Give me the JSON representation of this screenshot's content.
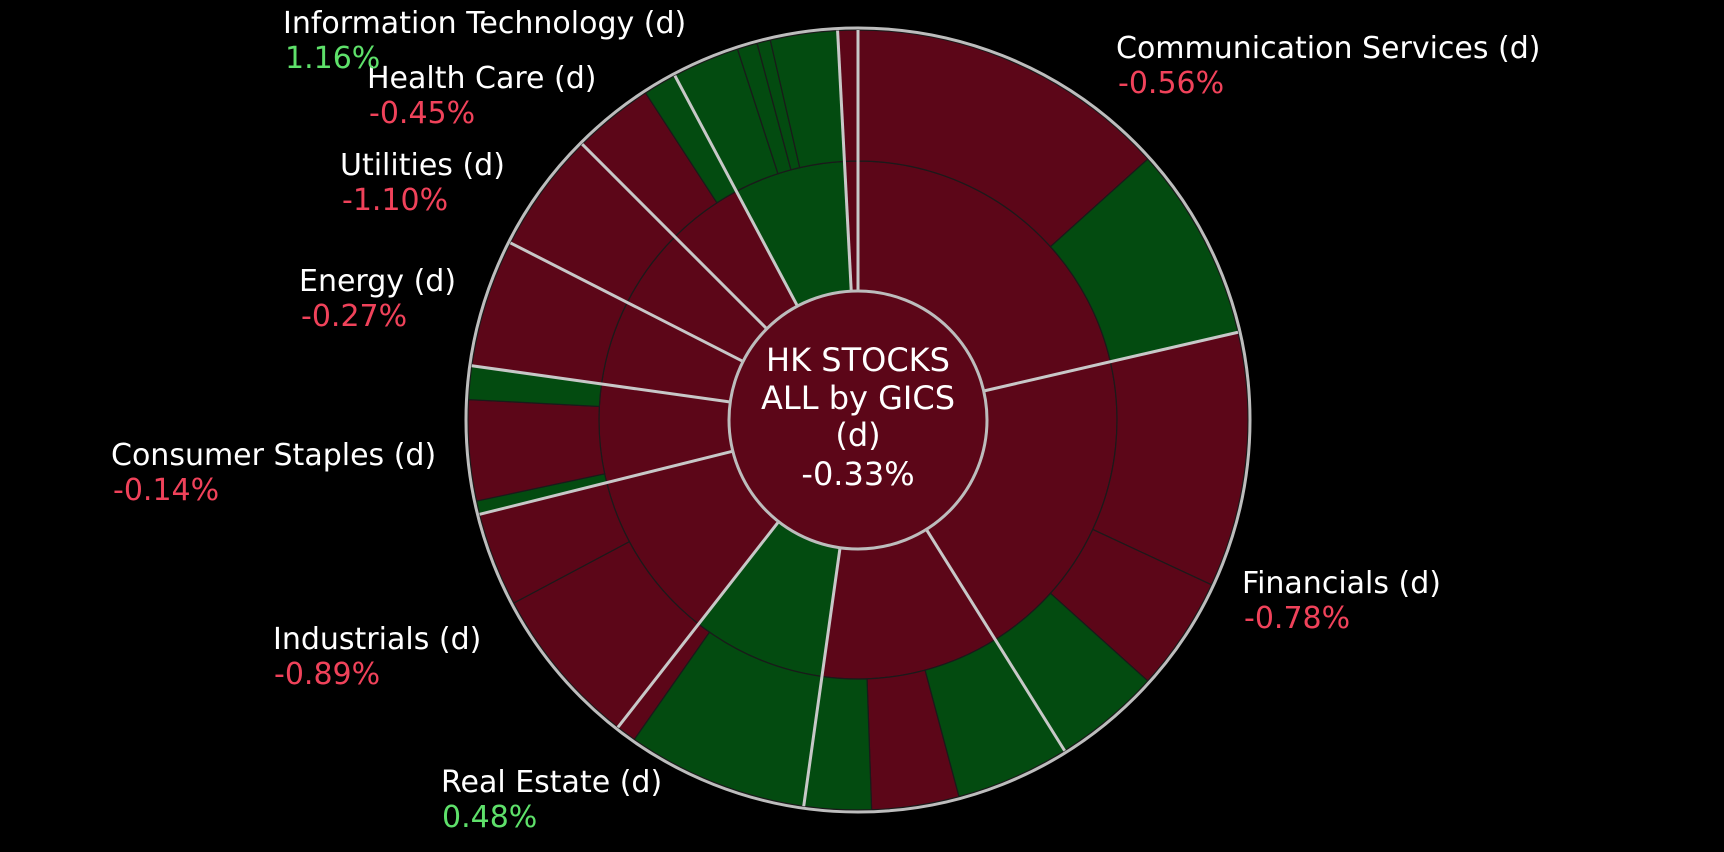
{
  "colors": {
    "background": "#000000",
    "up": "#034b10",
    "down": "#5c0618",
    "up_text": "#5ee06a",
    "down_text": "#f0425a",
    "separator": "#c8c8c8",
    "outline": "#bdbdbd"
  },
  "chart_data": {
    "type": "sunburst",
    "title_lines": [
      "HK STOCKS",
      "ALL by GICS",
      "(d)"
    ],
    "total_change": "-0.33%",
    "sectors": [
      {
        "name": "Communication Services (d)",
        "change": "-0.56%",
        "direction": "down",
        "start_deg": 0,
        "end_deg": 77,
        "children": [
          {
            "start_deg": 0,
            "end_deg": 77,
            "direction": "down",
            "children": [
              {
                "start_deg": 0,
                "end_deg": 48,
                "direction": "down"
              },
              {
                "start_deg": 48,
                "end_deg": 77,
                "direction": "up"
              }
            ]
          }
        ]
      },
      {
        "name": "Financials (d)",
        "change": "-0.78%",
        "direction": "down",
        "start_deg": 77,
        "end_deg": 148,
        "children": [
          {
            "start_deg": 77,
            "end_deg": 148,
            "direction": "down",
            "children": [
              {
                "start_deg": 77,
                "end_deg": 115,
                "direction": "down"
              },
              {
                "start_deg": 115,
                "end_deg": 132,
                "direction": "down"
              },
              {
                "start_deg": 132,
                "end_deg": 148,
                "direction": "up"
              }
            ]
          }
        ]
      },
      {
        "name": "Financials (d)",
        "change": "",
        "direction": "down",
        "start_deg": 148,
        "end_deg": 188,
        "children": [
          {
            "start_deg": 148,
            "end_deg": 188,
            "direction": "down",
            "children": [
              {
                "start_deg": 148,
                "end_deg": 165,
                "direction": "up"
              },
              {
                "start_deg": 165,
                "end_deg": 178,
                "direction": "down"
              },
              {
                "start_deg": 178,
                "end_deg": 188,
                "direction": "up"
              }
            ]
          }
        ]
      },
      {
        "name": "Real Estate (d)",
        "change": "0.48%",
        "direction": "up",
        "start_deg": 188,
        "end_deg": 218,
        "children": [
          {
            "start_deg": 188,
            "end_deg": 218,
            "direction": "up",
            "children": [
              {
                "start_deg": 188,
                "end_deg": 215,
                "direction": "up"
              },
              {
                "start_deg": 215,
                "end_deg": 218,
                "direction": "down"
              }
            ]
          }
        ]
      },
      {
        "name": "Industrials (d)",
        "change": "-0.89%",
        "direction": "down",
        "start_deg": 218,
        "end_deg": 256,
        "children": [
          {
            "start_deg": 218,
            "end_deg": 256,
            "direction": "down",
            "children": [
              {
                "start_deg": 218,
                "end_deg": 242,
                "direction": "down"
              },
              {
                "start_deg": 242,
                "end_deg": 256,
                "direction": "down"
              }
            ]
          }
        ]
      },
      {
        "name": "Consumer Staples (d)",
        "change": "-0.14%",
        "direction": "down",
        "start_deg": 256,
        "end_deg": 278,
        "children": [
          {
            "start_deg": 256,
            "end_deg": 278,
            "direction": "down",
            "children": [
              {
                "start_deg": 256,
                "end_deg": 258,
                "direction": "up"
              },
              {
                "start_deg": 258,
                "end_deg": 273,
                "direction": "down"
              },
              {
                "start_deg": 273,
                "end_deg": 278,
                "direction": "up"
              }
            ]
          }
        ]
      },
      {
        "name": "Energy (d)",
        "change": "-0.27%",
        "direction": "down",
        "start_deg": 278,
        "end_deg": 297,
        "children": [
          {
            "start_deg": 278,
            "end_deg": 297,
            "direction": "down",
            "children": [
              {
                "start_deg": 278,
                "end_deg": 297,
                "direction": "down"
              }
            ]
          }
        ]
      },
      {
        "name": "Utilities (d)",
        "change": "-1.10%",
        "direction": "down",
        "start_deg": 297,
        "end_deg": 315,
        "children": [
          {
            "start_deg": 297,
            "end_deg": 315,
            "direction": "down",
            "children": [
              {
                "start_deg": 297,
                "end_deg": 315,
                "direction": "down"
              }
            ]
          }
        ]
      },
      {
        "name": "Health Care (d)",
        "change": "-0.45%",
        "direction": "down",
        "start_deg": 315,
        "end_deg": 332,
        "children": [
          {
            "start_deg": 315,
            "end_deg": 332,
            "direction": "down",
            "children": [
              {
                "start_deg": 315,
                "end_deg": 327,
                "direction": "down"
              },
              {
                "start_deg": 327,
                "end_deg": 332,
                "direction": "up"
              }
            ]
          }
        ]
      },
      {
        "name": "Information Technology (d)",
        "change": "1.16%",
        "direction": "up",
        "start_deg": 332,
        "end_deg": 357,
        "children": [
          {
            "start_deg": 332,
            "end_deg": 357,
            "direction": "up",
            "children": [
              {
                "start_deg": 332,
                "end_deg": 342,
                "direction": "up"
              },
              {
                "start_deg": 342,
                "end_deg": 345,
                "direction": "up"
              },
              {
                "start_deg": 345,
                "end_deg": 347,
                "direction": "up"
              },
              {
                "start_deg": 347,
                "end_deg": 357,
                "direction": "up"
              }
            ]
          }
        ]
      },
      {
        "name": "",
        "change": "",
        "direction": "down",
        "start_deg": 357,
        "end_deg": 360,
        "children": [
          {
            "start_deg": 357,
            "end_deg": 360,
            "direction": "down",
            "children": [
              {
                "start_deg": 357,
                "end_deg": 360,
                "direction": "down"
              }
            ]
          }
        ]
      }
    ],
    "labels": [
      {
        "id": "communication-services",
        "name": "Communication Services (d)",
        "change": "-0.56%",
        "direction": "down"
      },
      {
        "id": "financials",
        "name": "Financials (d)",
        "change": "-0.78%",
        "direction": "down"
      },
      {
        "id": "real-estate",
        "name": "Real Estate (d)",
        "change": "0.48%",
        "direction": "up"
      },
      {
        "id": "industrials",
        "name": "Industrials (d)",
        "change": "-0.89%",
        "direction": "down"
      },
      {
        "id": "consumer-staples",
        "name": "Consumer Staples (d)",
        "change": "-0.14%",
        "direction": "down"
      },
      {
        "id": "energy",
        "name": "Energy (d)",
        "change": "-0.27%",
        "direction": "down"
      },
      {
        "id": "utilities",
        "name": "Utilities (d)",
        "change": "-1.10%",
        "direction": "down"
      },
      {
        "id": "health-care",
        "name": "Health Care (d)",
        "change": "-0.45%",
        "direction": "down"
      },
      {
        "id": "information-technology",
        "name": "Information Technology (d)",
        "change": "1.16%",
        "direction": "up"
      }
    ]
  }
}
